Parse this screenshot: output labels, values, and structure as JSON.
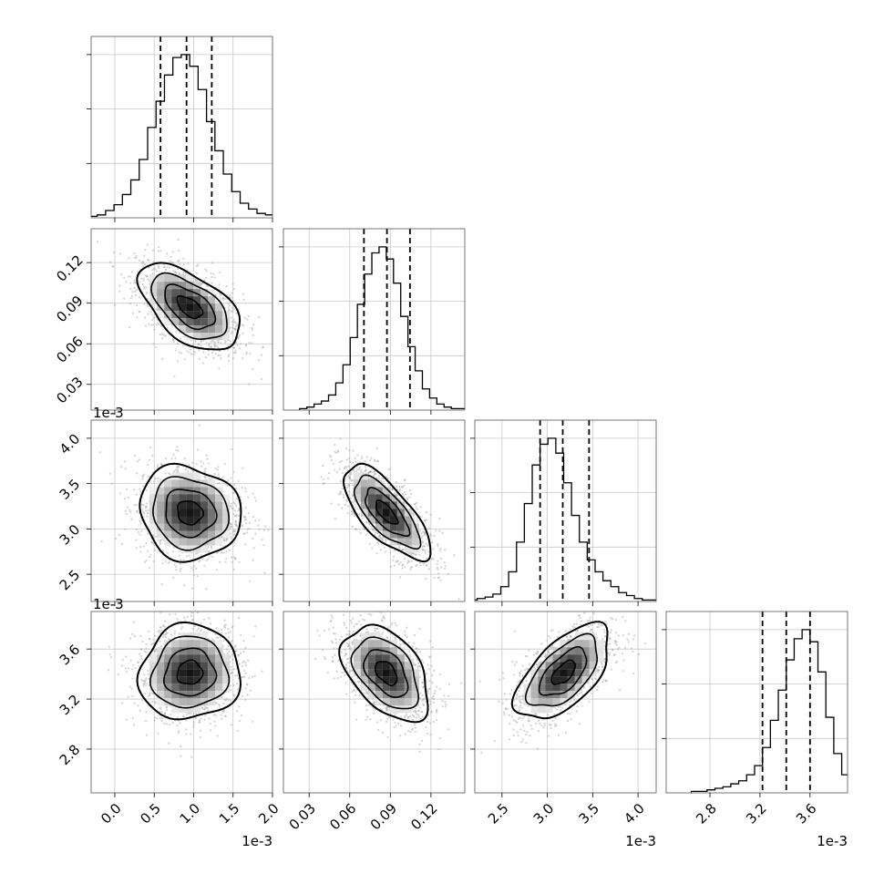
{
  "chart_data": {
    "type": "corner",
    "grid": true,
    "scatter_color": "#9e9e9e",
    "line_color": "#000000",
    "parameters": [
      {
        "range": [
          -0.0003,
          0.002
        ],
        "ticks": [
          0.0,
          0.5,
          1.0,
          1.5,
          2.0
        ],
        "tick_values": [
          0.0,
          0.0005,
          0.001,
          0.0015,
          0.002
        ],
        "tick_labels": [
          "0.0",
          "0.5",
          "1.0",
          "1.5",
          "2.0"
        ],
        "offset_label": "1e-3",
        "mean": 0.00095,
        "sd": 0.00032,
        "quantiles": [
          0.00058,
          0.00091,
          0.00123
        ],
        "hist": [
          1,
          2,
          5,
          9,
          16,
          26,
          40,
          62,
          80,
          98,
          110,
          112,
          104,
          88,
          66,
          46,
          30,
          18,
          10,
          6,
          3,
          2,
          1,
          1
        ]
      },
      {
        "range": [
          0.011,
          0.145
        ],
        "ticks": [
          0.03,
          0.06,
          0.09,
          0.12
        ],
        "tick_values": [
          0.03,
          0.06,
          0.09,
          0.12
        ],
        "tick_labels": [
          "0.03",
          "0.06",
          "0.09",
          "0.12"
        ],
        "offset_label": "",
        "mean": 0.087,
        "sd": 0.016,
        "quantiles": [
          0.0705,
          0.0875,
          0.1045
        ],
        "hist": [
          1,
          2,
          4,
          6,
          10,
          18,
          30,
          48,
          70,
          90,
          104,
          108,
          100,
          84,
          62,
          42,
          26,
          14,
          8,
          4,
          2,
          1,
          1,
          0
        ]
      },
      {
        "range": [
          0.0022,
          0.0042
        ],
        "ticks": [
          2.5,
          3.0,
          3.5,
          4.0
        ],
        "tick_values": [
          0.0025,
          0.003,
          0.0035,
          0.004
        ],
        "tick_labels": [
          "2.5",
          "3.0",
          "3.5",
          "4.0"
        ],
        "offset_label": "1e-3",
        "mean": 0.00318,
        "sd": 0.00026,
        "quantiles": [
          0.00292,
          0.00317,
          0.00346
        ],
        "hist": [
          1,
          2,
          3,
          5,
          10,
          20,
          40,
          66,
          92,
          106,
          110,
          100,
          80,
          58,
          40,
          28,
          20,
          14,
          10,
          6,
          4,
          2,
          1,
          1
        ]
      },
      {
        "range": [
          0.00245,
          0.0039
        ],
        "ticks": [
          2.8,
          3.2,
          3.6
        ],
        "tick_values": [
          0.0028,
          0.0032,
          0.0036
        ],
        "tick_labels": [
          "2.8",
          "3.2",
          "3.6"
        ],
        "offset_label": "1e-3",
        "mean": 0.00341,
        "sd": 0.00019,
        "quantiles": [
          0.00322,
          0.00341,
          0.0036
        ],
        "hist": [
          1,
          1,
          2,
          3,
          4,
          6,
          8,
          12,
          18,
          30,
          48,
          68,
          88,
          102,
          108,
          100,
          80,
          50,
          26,
          12,
          6,
          3,
          2,
          1
        ]
      }
    ],
    "pairs": [
      {
        "row": 1,
        "col": 0,
        "corr": -0.55
      },
      {
        "row": 2,
        "col": 0,
        "corr": -0.1
      },
      {
        "row": 2,
        "col": 1,
        "corr": -0.72
      },
      {
        "row": 3,
        "col": 0,
        "corr": 0.05
      },
      {
        "row": 3,
        "col": 1,
        "corr": -0.45
      },
      {
        "row": 3,
        "col": 2,
        "corr": 0.6
      }
    ]
  }
}
